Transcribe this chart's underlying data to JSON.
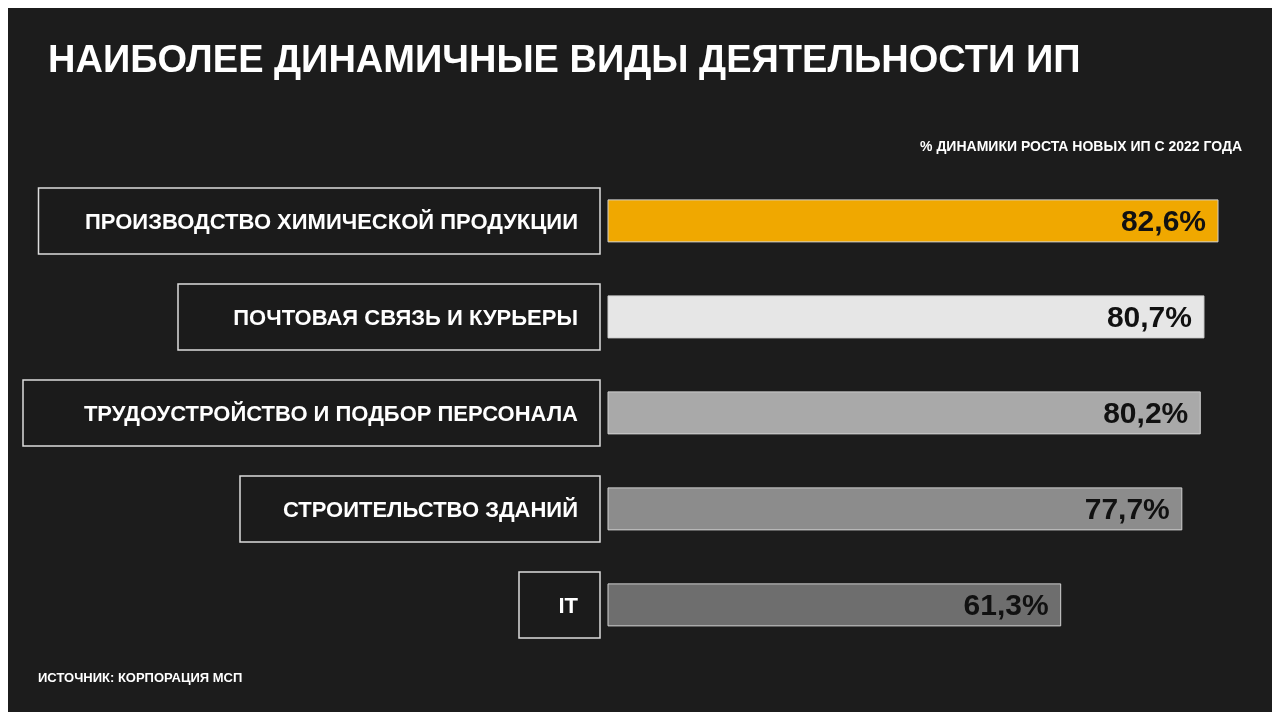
{
  "chart_data": {
    "type": "bar",
    "orientation": "horizontal",
    "title": "НАИБОЛЕЕ ДИНАМИЧНЫЕ ВИДЫ ДЕЯТЕЛЬНОСТИ ИП",
    "subtitle": "% ДИНАМИКИ РОСТА НОВЫХ ИП С 2022 ГОДА",
    "annotations": [
      "ИСТОЧНИК: КОРПОРАЦИЯ МСП"
    ],
    "categories": [
      "ПРОИЗВОДСТВО ХИМИЧЕСКОЙ ПРОДУКЦИИ",
      "ПОЧТОВАЯ СВЯЗЬ И КУРЬЕРЫ",
      "ТРУДОУСТРОЙСТВО И ПОДБОР ПЕРСОНАЛА",
      "СТРОИТЕЛЬСТВО ЗДАНИЙ",
      "IT"
    ],
    "values": [
      82.6,
      80.7,
      80.2,
      77.7,
      61.3
    ],
    "colors": [
      "#f0a800",
      "#e6e6e6",
      "#a9a9a9",
      "#8c8c8c",
      "#6e6e6e"
    ],
    "value_labels": [
      "82,6%",
      "80,7%",
      "80,2%",
      "77,7%",
      "61,3%"
    ]
  }
}
